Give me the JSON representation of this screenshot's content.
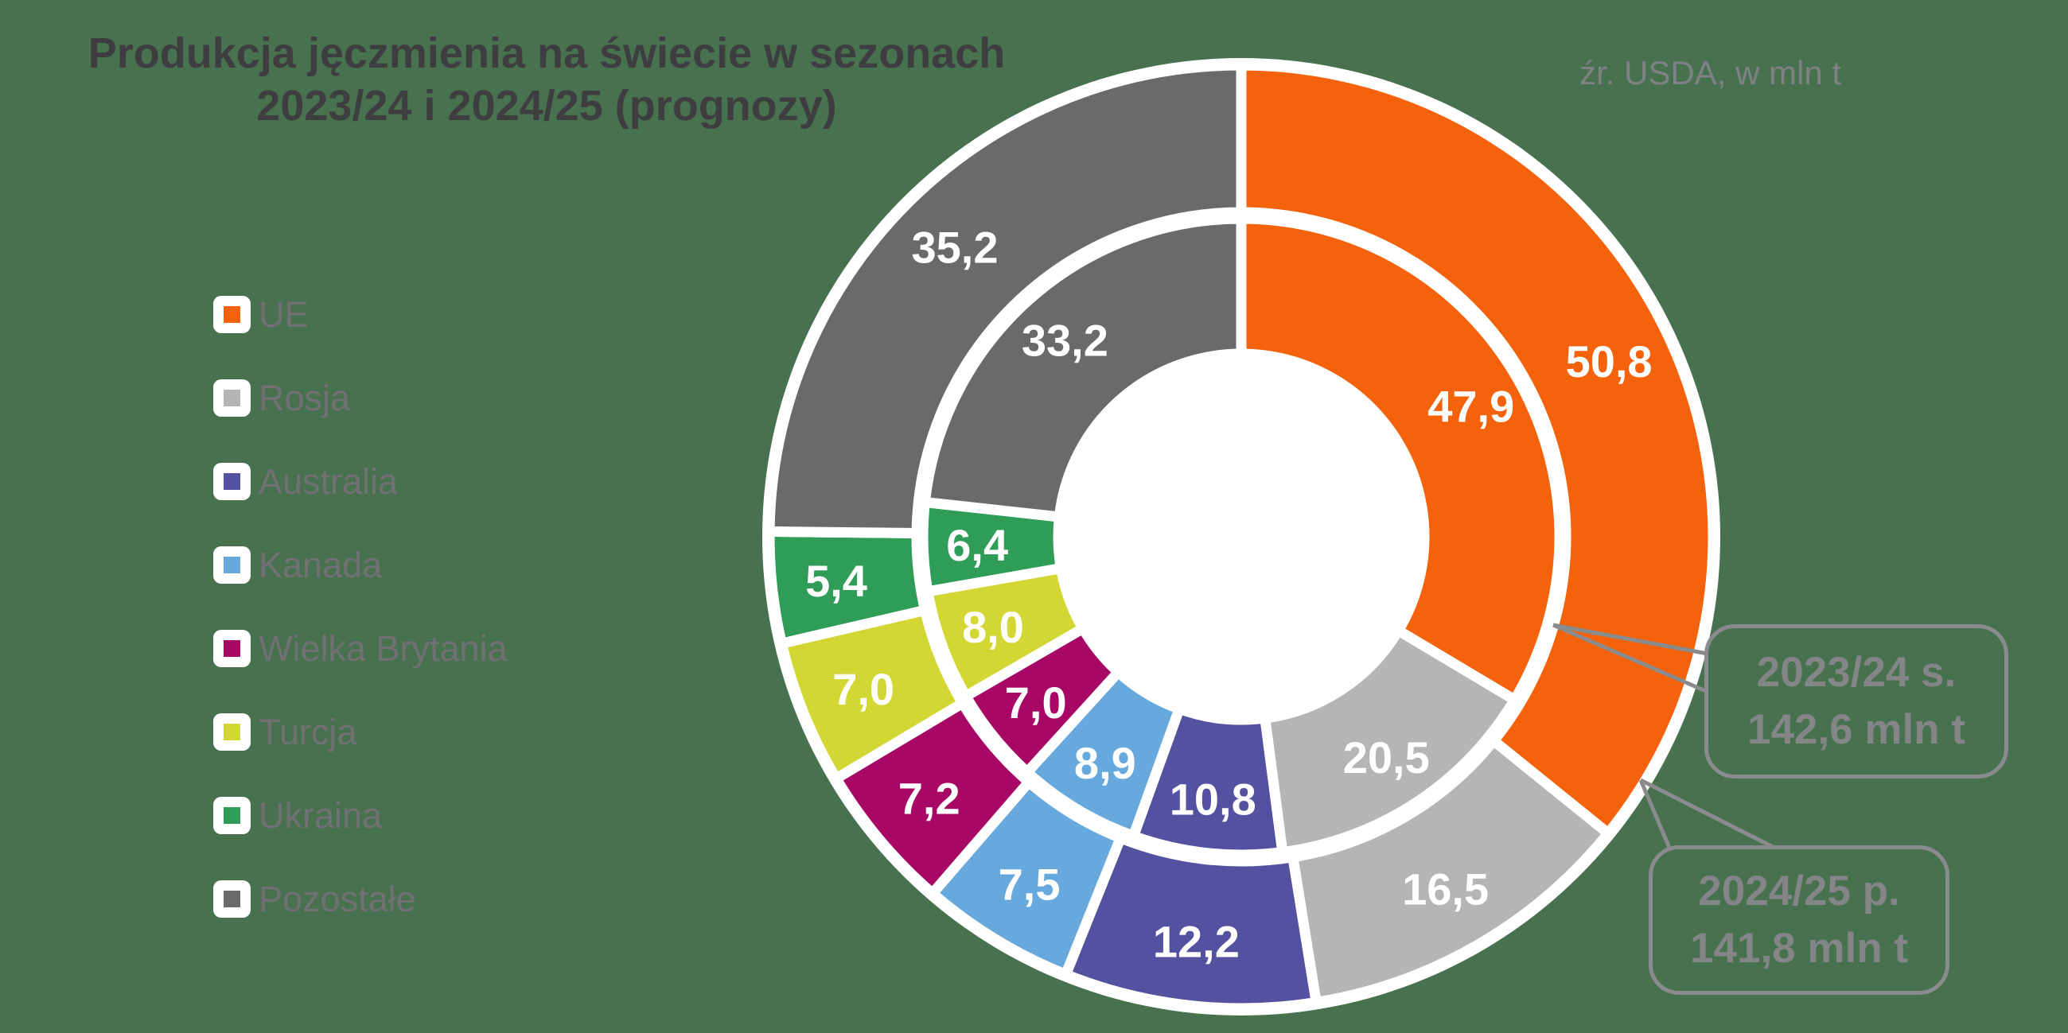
{
  "title": {
    "line1": "Produkcja jęczmienia na świecie w sezonach",
    "line2": "2023/24 i 2024/25 (prognozy)"
  },
  "source_note": "źr. USDA, w mln t",
  "legend": [
    {
      "label": "UE",
      "color": "#F4630C"
    },
    {
      "label": "Rosja",
      "color": "#B5B5B5"
    },
    {
      "label": "Australia",
      "color": "#5351A0"
    },
    {
      "label": "Kanada",
      "color": "#68A9DD"
    },
    {
      "label": "Wielka Brytania",
      "color": "#A70866"
    },
    {
      "label": "Turcja",
      "color": "#D2D733"
    },
    {
      "label": "Ukraina",
      "color": "#2F9C58"
    },
    {
      "label": "Pozostałe",
      "color": "#6A6A6A"
    }
  ],
  "chart_data": {
    "type": "pie",
    "subtype": "nested-donut",
    "unit": "mln t",
    "start_angle_deg": 0,
    "direction": "clockwise",
    "categories": [
      "UE",
      "Rosja",
      "Australia",
      "Kanada",
      "Wielka Brytania",
      "Turcja",
      "Ukraina",
      "Pozostałe"
    ],
    "series": [
      {
        "name": "2023/24 s.",
        "ring": "inner",
        "total": 142.6,
        "values": [
          47.9,
          20.5,
          10.8,
          8.9,
          7.0,
          8.0,
          6.4,
          33.2
        ]
      },
      {
        "name": "2024/25 p.",
        "ring": "outer",
        "total": 141.8,
        "values": [
          50.8,
          16.5,
          12.2,
          7.5,
          7.2,
          7.0,
          5.4,
          35.2
        ]
      }
    ],
    "value_label_color": "#FFFFFF",
    "decimal_separator": ","
  },
  "callouts": [
    {
      "line1": "2023/24 s.",
      "line2": "142,6 mln t"
    },
    {
      "line1": "2024/25 p.",
      "line2": "141,8 mln t"
    }
  ]
}
